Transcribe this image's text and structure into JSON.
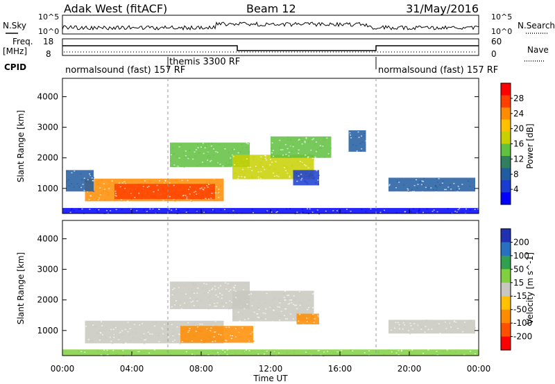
{
  "header": {
    "station": "Adak West (fitACF)",
    "beam": "Beam 12",
    "date": "31/May/2016"
  },
  "panels": {
    "nsky": {
      "label": "N.Sky",
      "right_label": "N.Search",
      "yticks": [
        "10^5",
        "10^0"
      ],
      "right_yticks": [
        "10^5",
        "10^0"
      ]
    },
    "freq": {
      "label": "Freq.",
      "unit": "[MHz]",
      "right_label": "Nave",
      "yticks": [
        "18",
        "8"
      ],
      "right_yticks": [
        "60",
        "0"
      ]
    },
    "cpid": {
      "label": "CPID",
      "modes": [
        {
          "name": "normalsound (fast) 157 RF",
          "start_hour": 0,
          "end_hour": 6
        },
        {
          "name": "themis 3300 RF",
          "start_hour": 6,
          "end_hour": 18
        },
        {
          "name": "normalsound (fast) 157 RF",
          "start_hour": 18,
          "end_hour": 24
        }
      ]
    }
  },
  "power_colorbar": {
    "label": "Power [dB]",
    "ticks": [
      "28",
      "24",
      "20",
      "16",
      "12",
      "8",
      "4"
    ],
    "colors": [
      "#ff0000",
      "#ff4000",
      "#ff8c00",
      "#ffc000",
      "#c8d000",
      "#60c040",
      "#308060",
      "#205ca0",
      "#1a3cd0",
      "#0000ff"
    ]
  },
  "velocity_colorbar": {
    "label": "Velocity [m s^-1]",
    "ticks": [
      "200",
      "100",
      "50",
      "15",
      "-15",
      "-50",
      "-100",
      "-200"
    ],
    "colors": [
      "#2030b0",
      "#2a70c0",
      "#30a050",
      "#80d040",
      "#c8c8c0",
      "#ffc000",
      "#ff8c00",
      "#ff5000",
      "#ff0000"
    ]
  },
  "chart_data": {
    "type": "heatmap",
    "x_axis": {
      "label": "Time UT",
      "range_hours": [
        0,
        24
      ],
      "ticks": [
        "00:00",
        "04:00",
        "08:00",
        "12:00",
        "16:00",
        "20:00",
        "00:00"
      ]
    },
    "y_axis": {
      "label": "Slant Range [km]",
      "range_km": [
        180,
        4600
      ],
      "ticks": [
        1000,
        2000,
        3000,
        4000
      ]
    },
    "power_regions": [
      {
        "t0": 1.3,
        "t1": 9.3,
        "r0": 580,
        "r1": 1320,
        "color": "#ff8c00"
      },
      {
        "t0": 3.0,
        "t1": 8.8,
        "r0": 650,
        "r1": 1150,
        "color": "#ff4000"
      },
      {
        "t0": 6.2,
        "t1": 10.8,
        "r0": 1700,
        "r1": 2500,
        "color": "#60c040"
      },
      {
        "t0": 9.8,
        "t1": 14.5,
        "r0": 1300,
        "r1": 2100,
        "color": "#c8d000"
      },
      {
        "t0": 12.0,
        "t1": 15.5,
        "r0": 2000,
        "r1": 2700,
        "color": "#60c040"
      },
      {
        "t0": 13.3,
        "t1": 14.8,
        "r0": 1100,
        "r1": 1600,
        "color": "#1a3cd0"
      },
      {
        "t0": 16.5,
        "t1": 17.5,
        "r0": 2200,
        "r1": 2900,
        "color": "#205ca0"
      },
      {
        "t0": 18.8,
        "t1": 23.8,
        "r0": 900,
        "r1": 1350,
        "color": "#205ca0"
      },
      {
        "t0": 0.2,
        "t1": 1.8,
        "r0": 900,
        "r1": 1600,
        "color": "#205ca0"
      },
      {
        "t0": 0.0,
        "t1": 24.0,
        "r0": 180,
        "r1": 360,
        "color": "#0000ff"
      }
    ],
    "velocity_regions": [
      {
        "t0": 1.3,
        "t1": 9.3,
        "r0": 580,
        "r1": 1320,
        "color": "#c8c8c0"
      },
      {
        "t0": 6.8,
        "t1": 11.0,
        "r0": 600,
        "r1": 1150,
        "color": "#ff8c00"
      },
      {
        "t0": 6.2,
        "t1": 10.8,
        "r0": 1700,
        "r1": 2600,
        "color": "#c8c8c0"
      },
      {
        "t0": 9.8,
        "t1": 14.5,
        "r0": 1300,
        "r1": 2300,
        "color": "#c8c8c0"
      },
      {
        "t0": 13.5,
        "t1": 14.8,
        "r0": 1200,
        "r1": 1550,
        "color": "#ff8c00"
      },
      {
        "t0": 18.8,
        "t1": 23.8,
        "r0": 900,
        "r1": 1350,
        "color": "#c8c8c0"
      },
      {
        "t0": 0.0,
        "t1": 24.0,
        "r0": 180,
        "r1": 380,
        "color": "#80d040"
      }
    ]
  }
}
